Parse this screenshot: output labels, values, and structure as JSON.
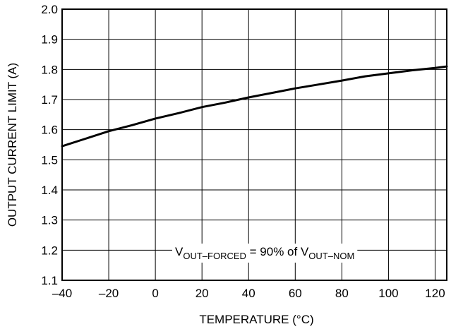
{
  "chart_data": {
    "type": "line",
    "title": "",
    "xlabel": "TEMPERATURE (°C)",
    "ylabel": "OUTPUT CURRENT LIMIT (A)",
    "xlim": [
      -40,
      125
    ],
    "ylim": [
      1.1,
      2.0
    ],
    "grid": true,
    "x_ticks": [
      -40,
      -20,
      0,
      20,
      40,
      60,
      80,
      100,
      120
    ],
    "x_tick_labels": [
      "–40",
      "–20",
      "0",
      "20",
      "40",
      "60",
      "80",
      "100",
      "120"
    ],
    "y_ticks": [
      1.1,
      1.2,
      1.3,
      1.4,
      1.5,
      1.6,
      1.7,
      1.8,
      1.9,
      2.0
    ],
    "y_tick_labels": [
      "1.1",
      "1.2",
      "1.3",
      "1.4",
      "1.5",
      "1.6",
      "1.7",
      "1.8",
      "1.9",
      "2.0"
    ],
    "series": [
      {
        "color": "#000000",
        "x": [
          -40,
          -30,
          -20,
          -10,
          0,
          10,
          20,
          30,
          40,
          50,
          60,
          70,
          80,
          90,
          100,
          110,
          120,
          125
        ],
        "y": [
          1.545,
          1.57,
          1.595,
          1.615,
          1.637,
          1.655,
          1.675,
          1.69,
          1.707,
          1.722,
          1.737,
          1.75,
          1.763,
          1.777,
          1.787,
          1.797,
          1.805,
          1.81
        ]
      }
    ],
    "annotation": {
      "v1": "V",
      "sub1": "OUT–FORCED",
      "mid": " = 90% of ",
      "v2": "V",
      "sub2": "OUT–NOM"
    }
  }
}
